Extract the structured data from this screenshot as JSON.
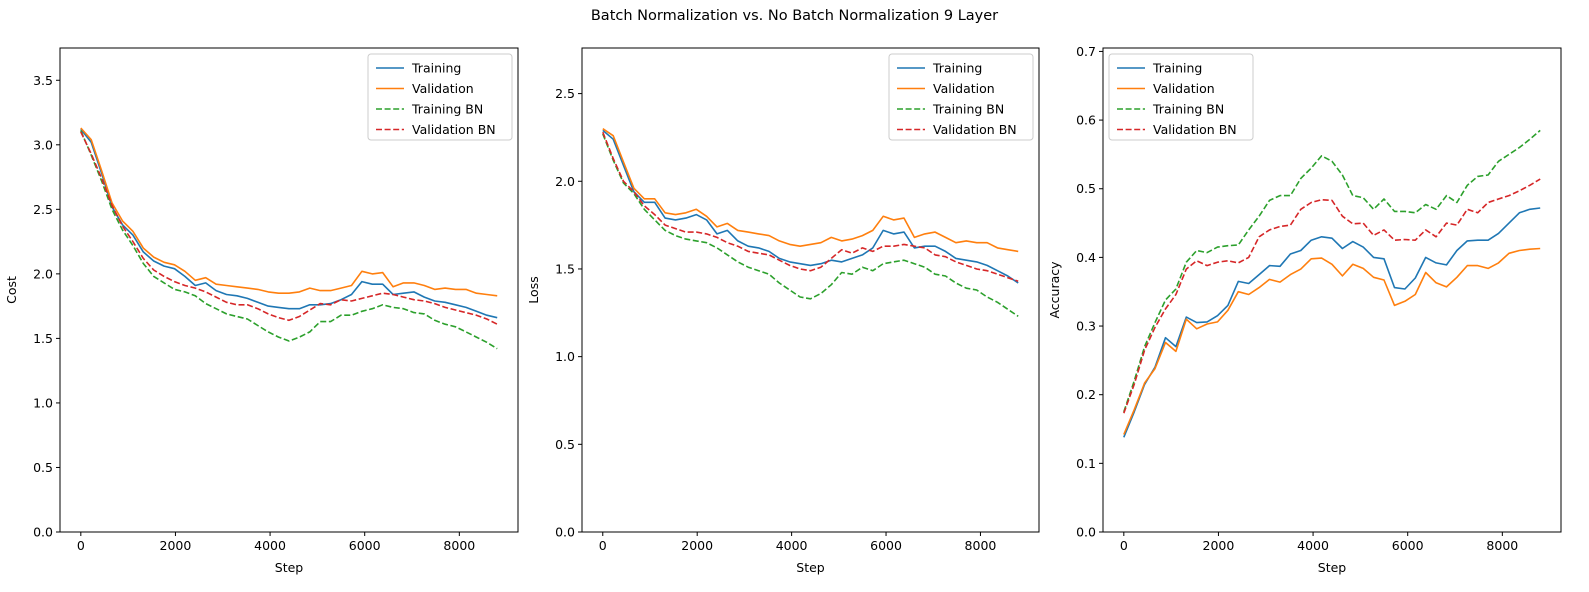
{
  "figure": {
    "title": "Batch Normalization vs. No Batch Normalization 9 Layer"
  },
  "colors": {
    "training": "#1f77b4",
    "validation": "#ff7f0e",
    "training_bn": "#2ca02c",
    "validation_bn": "#d62728"
  },
  "chart_data": [
    {
      "type": "line",
      "xlabel": "Step",
      "ylabel": "Cost",
      "xlim": [
        -440,
        9240
      ],
      "ylim": [
        0,
        3.75
      ],
      "xticks": [
        0,
        2000,
        4000,
        6000,
        8000
      ],
      "yticks": [
        0.0,
        0.5,
        1.0,
        1.5,
        2.0,
        2.5,
        3.0,
        3.5
      ],
      "xtick_labels": [
        "0",
        "2000",
        "4000",
        "6000",
        "8000"
      ],
      "ytick_labels": [
        "0.0",
        "0.5",
        "1.0",
        "1.5",
        "2.0",
        "2.5",
        "3.0",
        "3.5"
      ],
      "legend_position": "top-right",
      "x": [
        0,
        220,
        440,
        660,
        880,
        1100,
        1320,
        1540,
        1760,
        1980,
        2200,
        2420,
        2640,
        2860,
        3080,
        3300,
        3520,
        3740,
        3960,
        4180,
        4400,
        4620,
        4840,
        5060,
        5280,
        5500,
        5720,
        5940,
        6160,
        6380,
        6600,
        6820,
        7040,
        7260,
        7480,
        7700,
        7920,
        8140,
        8360,
        8580,
        8800
      ],
      "series": [
        {
          "name": "Training",
          "style": "solid",
          "color": "#1f77b4",
          "values": [
            3.12,
            3.02,
            2.78,
            2.52,
            2.38,
            2.3,
            2.17,
            2.1,
            2.06,
            2.04,
            1.98,
            1.91,
            1.93,
            1.87,
            1.84,
            1.83,
            1.81,
            1.78,
            1.75,
            1.74,
            1.73,
            1.73,
            1.76,
            1.76,
            1.77,
            1.8,
            1.84,
            1.94,
            1.92,
            1.92,
            1.84,
            1.85,
            1.86,
            1.82,
            1.79,
            1.78,
            1.76,
            1.74,
            1.71,
            1.68,
            1.66
          ]
        },
        {
          "name": "Validation",
          "style": "solid",
          "color": "#ff7f0e",
          "values": [
            3.13,
            3.04,
            2.8,
            2.55,
            2.41,
            2.33,
            2.2,
            2.13,
            2.09,
            2.07,
            2.02,
            1.95,
            1.97,
            1.92,
            1.91,
            1.9,
            1.89,
            1.88,
            1.86,
            1.85,
            1.85,
            1.86,
            1.89,
            1.87,
            1.87,
            1.89,
            1.91,
            2.02,
            2.0,
            2.01,
            1.9,
            1.93,
            1.93,
            1.91,
            1.88,
            1.89,
            1.88,
            1.88,
            1.85,
            1.84,
            1.83
          ]
        },
        {
          "name": "Training BN",
          "style": "dashed",
          "color": "#2ca02c",
          "values": [
            3.11,
            2.92,
            2.72,
            2.5,
            2.34,
            2.22,
            2.08,
            1.98,
            1.93,
            1.88,
            1.86,
            1.83,
            1.77,
            1.73,
            1.69,
            1.67,
            1.65,
            1.6,
            1.55,
            1.51,
            1.48,
            1.51,
            1.55,
            1.63,
            1.63,
            1.68,
            1.68,
            1.71,
            1.73,
            1.76,
            1.74,
            1.73,
            1.7,
            1.69,
            1.64,
            1.61,
            1.59,
            1.55,
            1.51,
            1.47,
            1.42
          ]
        },
        {
          "name": "Validation BN",
          "style": "dashed",
          "color": "#d62728",
          "values": [
            3.1,
            2.93,
            2.74,
            2.53,
            2.37,
            2.25,
            2.12,
            2.03,
            1.98,
            1.94,
            1.91,
            1.89,
            1.86,
            1.82,
            1.78,
            1.76,
            1.76,
            1.73,
            1.69,
            1.66,
            1.64,
            1.67,
            1.72,
            1.77,
            1.76,
            1.8,
            1.79,
            1.81,
            1.83,
            1.85,
            1.84,
            1.82,
            1.8,
            1.79,
            1.77,
            1.74,
            1.72,
            1.7,
            1.68,
            1.65,
            1.61
          ]
        }
      ]
    },
    {
      "type": "line",
      "xlabel": "Step",
      "ylabel": "Loss",
      "xlim": [
        -440,
        9240
      ],
      "ylim": [
        0,
        2.76
      ],
      "xticks": [
        0,
        2000,
        4000,
        6000,
        8000
      ],
      "yticks": [
        0.0,
        0.5,
        1.0,
        1.5,
        2.0,
        2.5
      ],
      "xtick_labels": [
        "0",
        "2000",
        "4000",
        "6000",
        "8000"
      ],
      "ytick_labels": [
        "0.0",
        "0.5",
        "1.0",
        "1.5",
        "2.0",
        "2.5"
      ],
      "legend_position": "top-right",
      "x": [
        0,
        220,
        440,
        660,
        880,
        1100,
        1320,
        1540,
        1760,
        1980,
        2200,
        2420,
        2640,
        2860,
        3080,
        3300,
        3520,
        3740,
        3960,
        4180,
        4400,
        4620,
        4840,
        5060,
        5280,
        5500,
        5720,
        5940,
        6160,
        6380,
        6600,
        6820,
        7040,
        7260,
        7480,
        7700,
        7920,
        8140,
        8360,
        8580,
        8800
      ],
      "series": [
        {
          "name": "Training",
          "style": "solid",
          "color": "#1f77b4",
          "values": [
            2.29,
            2.24,
            2.09,
            1.94,
            1.88,
            1.88,
            1.79,
            1.78,
            1.79,
            1.81,
            1.78,
            1.7,
            1.72,
            1.66,
            1.63,
            1.62,
            1.6,
            1.56,
            1.54,
            1.53,
            1.52,
            1.53,
            1.55,
            1.54,
            1.56,
            1.58,
            1.62,
            1.72,
            1.7,
            1.71,
            1.62,
            1.63,
            1.63,
            1.6,
            1.56,
            1.55,
            1.54,
            1.52,
            1.49,
            1.46,
            1.42
          ]
        },
        {
          "name": "Validation",
          "style": "solid",
          "color": "#ff7f0e",
          "values": [
            2.3,
            2.26,
            2.11,
            1.96,
            1.9,
            1.9,
            1.82,
            1.81,
            1.82,
            1.84,
            1.8,
            1.74,
            1.76,
            1.72,
            1.71,
            1.7,
            1.69,
            1.66,
            1.64,
            1.63,
            1.64,
            1.65,
            1.68,
            1.66,
            1.67,
            1.69,
            1.72,
            1.8,
            1.78,
            1.79,
            1.68,
            1.7,
            1.71,
            1.68,
            1.65,
            1.66,
            1.65,
            1.65,
            1.62,
            1.61,
            1.6
          ]
        },
        {
          "name": "Training BN",
          "style": "dashed",
          "color": "#2ca02c",
          "values": [
            2.27,
            2.12,
            1.99,
            1.93,
            1.84,
            1.78,
            1.72,
            1.69,
            1.67,
            1.66,
            1.65,
            1.62,
            1.58,
            1.54,
            1.51,
            1.49,
            1.47,
            1.42,
            1.38,
            1.34,
            1.33,
            1.36,
            1.41,
            1.48,
            1.47,
            1.51,
            1.49,
            1.53,
            1.54,
            1.55,
            1.53,
            1.51,
            1.47,
            1.46,
            1.42,
            1.39,
            1.38,
            1.34,
            1.31,
            1.27,
            1.23
          ]
        },
        {
          "name": "Validation BN",
          "style": "dashed",
          "color": "#d62728",
          "values": [
            2.28,
            2.13,
            2.0,
            1.94,
            1.86,
            1.81,
            1.75,
            1.73,
            1.71,
            1.71,
            1.7,
            1.68,
            1.65,
            1.63,
            1.6,
            1.59,
            1.58,
            1.55,
            1.52,
            1.5,
            1.49,
            1.51,
            1.56,
            1.61,
            1.59,
            1.62,
            1.6,
            1.63,
            1.63,
            1.64,
            1.63,
            1.62,
            1.58,
            1.57,
            1.54,
            1.52,
            1.5,
            1.49,
            1.47,
            1.45,
            1.43
          ]
        }
      ]
    },
    {
      "type": "line",
      "xlabel": "Step",
      "ylabel": "Accuracy",
      "xlim": [
        -440,
        9240
      ],
      "ylim": [
        0,
        0.705
      ],
      "xticks": [
        0,
        2000,
        4000,
        6000,
        8000
      ],
      "yticks": [
        0.0,
        0.1,
        0.2,
        0.3,
        0.4,
        0.5,
        0.6,
        0.7
      ],
      "xtick_labels": [
        "0",
        "2000",
        "4000",
        "6000",
        "8000"
      ],
      "ytick_labels": [
        "0.0",
        "0.1",
        "0.2",
        "0.3",
        "0.4",
        "0.5",
        "0.6",
        "0.7"
      ],
      "legend_position": "top-left",
      "x": [
        0,
        220,
        440,
        660,
        880,
        1100,
        1320,
        1540,
        1760,
        1980,
        2200,
        2420,
        2640,
        2860,
        3080,
        3300,
        3520,
        3740,
        3960,
        4180,
        4400,
        4620,
        4840,
        5060,
        5280,
        5500,
        5720,
        5940,
        6160,
        6380,
        6600,
        6820,
        7040,
        7260,
        7480,
        7700,
        7920,
        8140,
        8360,
        8580,
        8800
      ],
      "series": [
        {
          "name": "Training",
          "style": "solid",
          "color": "#1f77b4",
          "values": [
            0.138,
            0.175,
            0.215,
            0.24,
            0.283,
            0.27,
            0.313,
            0.305,
            0.306,
            0.315,
            0.33,
            0.365,
            0.362,
            0.375,
            0.388,
            0.387,
            0.405,
            0.41,
            0.425,
            0.43,
            0.428,
            0.413,
            0.423,
            0.415,
            0.4,
            0.398,
            0.356,
            0.354,
            0.37,
            0.4,
            0.392,
            0.389,
            0.41,
            0.424,
            0.425,
            0.425,
            0.435,
            0.45,
            0.465,
            0.47,
            0.472
          ]
        },
        {
          "name": "Validation",
          "style": "solid",
          "color": "#ff7f0e",
          "values": [
            0.142,
            0.178,
            0.217,
            0.238,
            0.276,
            0.263,
            0.31,
            0.296,
            0.303,
            0.306,
            0.323,
            0.35,
            0.346,
            0.356,
            0.368,
            0.364,
            0.375,
            0.383,
            0.398,
            0.399,
            0.39,
            0.373,
            0.39,
            0.384,
            0.371,
            0.367,
            0.33,
            0.336,
            0.346,
            0.378,
            0.363,
            0.357,
            0.371,
            0.388,
            0.388,
            0.384,
            0.392,
            0.406,
            0.41,
            0.412,
            0.413
          ]
        },
        {
          "name": "Training BN",
          "style": "dashed",
          "color": "#2ca02c",
          "values": [
            0.175,
            0.22,
            0.27,
            0.305,
            0.338,
            0.354,
            0.393,
            0.41,
            0.407,
            0.415,
            0.417,
            0.418,
            0.44,
            0.46,
            0.483,
            0.49,
            0.49,
            0.515,
            0.53,
            0.548,
            0.54,
            0.52,
            0.49,
            0.487,
            0.47,
            0.485,
            0.467,
            0.467,
            0.465,
            0.477,
            0.47,
            0.49,
            0.48,
            0.505,
            0.518,
            0.52,
            0.54,
            0.55,
            0.56,
            0.572,
            0.585
          ]
        },
        {
          "name": "Validation BN",
          "style": "dashed",
          "color": "#d62728",
          "values": [
            0.173,
            0.215,
            0.265,
            0.298,
            0.325,
            0.346,
            0.383,
            0.395,
            0.388,
            0.393,
            0.395,
            0.392,
            0.4,
            0.43,
            0.44,
            0.445,
            0.447,
            0.47,
            0.48,
            0.484,
            0.483,
            0.46,
            0.449,
            0.45,
            0.432,
            0.44,
            0.425,
            0.426,
            0.425,
            0.44,
            0.43,
            0.45,
            0.447,
            0.47,
            0.465,
            0.48,
            0.485,
            0.49,
            0.497,
            0.505,
            0.514
          ]
        }
      ]
    }
  ]
}
